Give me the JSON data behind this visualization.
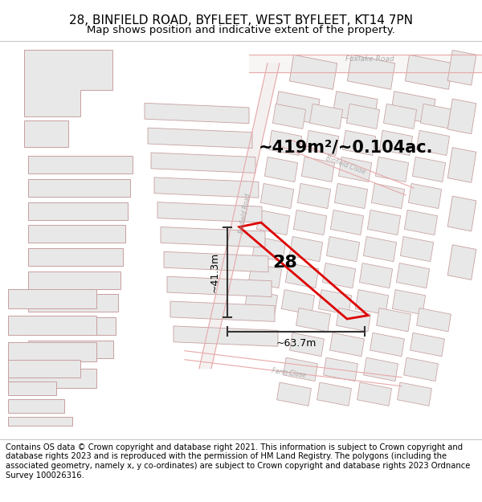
{
  "title_line1": "28, BINFIELD ROAD, BYFLEET, WEST BYFLEET, KT14 7PN",
  "title_line2": "Map shows position and indicative extent of the property.",
  "footer_text": "Contains OS data © Crown copyright and database right 2021. This information is subject to Crown copyright and database rights 2023 and is reproduced with the permission of HM Land Registry. The polygons (including the associated geometry, namely x, y co-ordinates) are subject to Crown copyright and database rights 2023 Ordnance Survey 100026316.",
  "area_label": "~419m²/~0.104ac.",
  "number_label": "28",
  "dim_width": "~63.7m",
  "dim_height": "~41.3m",
  "title_fontsize": 11,
  "subtitle_fontsize": 9.5,
  "footer_fontsize": 7.2,
  "area_fontsize": 15,
  "map_bg": "#ffffff",
  "building_fill": "#e8e8e8",
  "building_edge": "#c8a0a0",
  "road_edge": "#e8a8a8",
  "road_label_color": "#aaaaaa",
  "highlight_color": "#dd0000",
  "dim_color": "#333333"
}
